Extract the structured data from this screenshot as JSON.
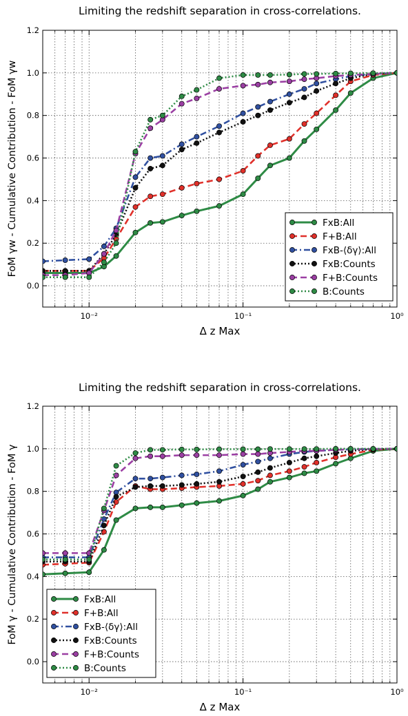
{
  "chart_data": [
    {
      "type": "line",
      "title": "Limiting the redshift separation in cross-correlations.",
      "xlabel": "Δ z Max",
      "ylabel": "FoM γw - Cumulative Contribution - FoM γw",
      "xscale": "log",
      "xlim": [
        0.005,
        1.0
      ],
      "ylim": [
        -0.1,
        1.2
      ],
      "xtick_labels": [
        "10⁻²",
        "10⁻¹",
        "10⁰"
      ],
      "ytick_labels": [
        "0.0",
        "0.2",
        "0.4",
        "0.6",
        "0.8",
        "1.0",
        "1.2"
      ],
      "grid": true,
      "legend_position": "lower-right",
      "series": [
        {
          "name": "FxB:All",
          "color": "#2e8b45",
          "line": "solid",
          "x": [
            0.005,
            0.007,
            0.01,
            0.0125,
            0.015,
            0.02,
            0.025,
            0.03,
            0.04,
            0.05,
            0.07,
            0.1,
            0.125,
            0.15,
            0.2,
            0.25,
            0.3,
            0.4,
            0.5,
            0.7,
            1.0
          ],
          "y": [
            0.06,
            0.06,
            0.06,
            0.09,
            0.14,
            0.25,
            0.295,
            0.3,
            0.33,
            0.35,
            0.375,
            0.43,
            0.505,
            0.565,
            0.6,
            0.68,
            0.735,
            0.825,
            0.905,
            0.975,
            1.0
          ]
        },
        {
          "name": "F+B:All",
          "color": "#e0302a",
          "line": "dashed",
          "x": [
            0.005,
            0.007,
            0.01,
            0.0125,
            0.015,
            0.02,
            0.025,
            0.03,
            0.04,
            0.05,
            0.07,
            0.1,
            0.125,
            0.15,
            0.2,
            0.25,
            0.3,
            0.4,
            0.5,
            0.7,
            1.0
          ],
          "y": [
            0.07,
            0.07,
            0.07,
            0.13,
            0.22,
            0.37,
            0.42,
            0.43,
            0.46,
            0.48,
            0.5,
            0.54,
            0.61,
            0.66,
            0.69,
            0.76,
            0.81,
            0.895,
            0.96,
            0.99,
            1.0
          ]
        },
        {
          "name": "FxB-⟨δγ⟩:All",
          "color": "#3050a0",
          "line": "dashdot",
          "x": [
            0.005,
            0.007,
            0.01,
            0.0125,
            0.015,
            0.02,
            0.025,
            0.03,
            0.04,
            0.05,
            0.07,
            0.1,
            0.125,
            0.15,
            0.2,
            0.25,
            0.3,
            0.4,
            0.5,
            0.7,
            1.0
          ],
          "y": [
            0.115,
            0.12,
            0.125,
            0.185,
            0.27,
            0.51,
            0.6,
            0.61,
            0.665,
            0.7,
            0.75,
            0.81,
            0.84,
            0.865,
            0.9,
            0.925,
            0.95,
            0.97,
            0.985,
            0.995,
            1.0
          ]
        },
        {
          "name": "FxB:Counts",
          "color": "#111111",
          "line": "dotted",
          "x": [
            0.005,
            0.007,
            0.01,
            0.0125,
            0.015,
            0.02,
            0.025,
            0.03,
            0.04,
            0.05,
            0.07,
            0.1,
            0.125,
            0.15,
            0.2,
            0.25,
            0.3,
            0.4,
            0.5,
            0.7,
            1.0
          ],
          "y": [
            0.07,
            0.07,
            0.07,
            0.15,
            0.24,
            0.46,
            0.55,
            0.565,
            0.64,
            0.67,
            0.72,
            0.77,
            0.8,
            0.825,
            0.86,
            0.885,
            0.915,
            0.95,
            0.975,
            0.995,
            1.0
          ]
        },
        {
          "name": "F+B:Counts",
          "color": "#9b3fa3",
          "line": "dashed",
          "x": [
            0.005,
            0.007,
            0.01,
            0.0125,
            0.015,
            0.02,
            0.025,
            0.03,
            0.04,
            0.05,
            0.07,
            0.1,
            0.125,
            0.15,
            0.2,
            0.25,
            0.3,
            0.4,
            0.5,
            0.7,
            1.0
          ],
          "y": [
            0.05,
            0.05,
            0.06,
            0.15,
            0.26,
            0.62,
            0.74,
            0.78,
            0.855,
            0.88,
            0.925,
            0.94,
            0.945,
            0.955,
            0.96,
            0.97,
            0.975,
            0.985,
            0.99,
            0.995,
            1.0
          ]
        },
        {
          "name": "B:Counts",
          "color": "#2e8b45",
          "line": "dotted",
          "x": [
            0.005,
            0.007,
            0.01,
            0.0125,
            0.015,
            0.02,
            0.025,
            0.03,
            0.04,
            0.05,
            0.07,
            0.1,
            0.125,
            0.15,
            0.2,
            0.25,
            0.3,
            0.4,
            0.5,
            0.7,
            1.0
          ],
          "y": [
            0.04,
            0.04,
            0.04,
            0.11,
            0.2,
            0.63,
            0.78,
            0.8,
            0.89,
            0.92,
            0.975,
            0.99,
            0.99,
            0.99,
            0.992,
            0.995,
            0.995,
            0.997,
            0.998,
            0.999,
            1.0
          ]
        }
      ]
    },
    {
      "type": "line",
      "title": "Limiting the redshift separation in cross-correlations.",
      "xlabel": "Δ z Max",
      "ylabel": "FoM γ - Cumulative Contribution - FoM γ",
      "xscale": "log",
      "xlim": [
        0.005,
        1.0
      ],
      "ylim": [
        -0.1,
        1.2
      ],
      "xtick_labels": [
        "10⁻²",
        "10⁻¹",
        "10⁰"
      ],
      "ytick_labels": [
        "0.0",
        "0.2",
        "0.4",
        "0.6",
        "0.8",
        "1.0",
        "1.2"
      ],
      "grid": true,
      "legend_position": "lower-left",
      "series": [
        {
          "name": "FxB:All",
          "color": "#2e8b45",
          "line": "solid",
          "x": [
            0.005,
            0.007,
            0.01,
            0.0125,
            0.015,
            0.02,
            0.025,
            0.03,
            0.04,
            0.05,
            0.07,
            0.1,
            0.125,
            0.15,
            0.2,
            0.25,
            0.3,
            0.4,
            0.5,
            0.7,
            1.0
          ],
          "y": [
            0.41,
            0.415,
            0.42,
            0.525,
            0.665,
            0.72,
            0.725,
            0.725,
            0.735,
            0.745,
            0.755,
            0.78,
            0.81,
            0.845,
            0.865,
            0.885,
            0.895,
            0.93,
            0.955,
            0.99,
            1.0
          ]
        },
        {
          "name": "F+B:All",
          "color": "#e0302a",
          "line": "dashed",
          "x": [
            0.005,
            0.007,
            0.01,
            0.0125,
            0.015,
            0.02,
            0.025,
            0.03,
            0.04,
            0.05,
            0.07,
            0.1,
            0.125,
            0.15,
            0.2,
            0.25,
            0.3,
            0.4,
            0.5,
            0.7,
            1.0
          ],
          "y": [
            0.455,
            0.46,
            0.465,
            0.61,
            0.75,
            0.825,
            0.81,
            0.81,
            0.815,
            0.82,
            0.825,
            0.835,
            0.85,
            0.875,
            0.895,
            0.915,
            0.935,
            0.96,
            0.975,
            0.995,
            1.0
          ]
        },
        {
          "name": "FxB-⟨δγ⟩:All",
          "color": "#3050a0",
          "line": "dashdot",
          "x": [
            0.005,
            0.007,
            0.01,
            0.0125,
            0.015,
            0.02,
            0.025,
            0.03,
            0.04,
            0.05,
            0.07,
            0.1,
            0.125,
            0.15,
            0.2,
            0.25,
            0.3,
            0.4,
            0.5,
            0.7,
            1.0
          ],
          "y": [
            0.49,
            0.49,
            0.49,
            0.67,
            0.795,
            0.86,
            0.86,
            0.865,
            0.875,
            0.88,
            0.895,
            0.925,
            0.94,
            0.955,
            0.975,
            0.985,
            0.99,
            0.995,
            0.997,
            0.999,
            1.0
          ]
        },
        {
          "name": "FxB:Counts",
          "color": "#111111",
          "line": "dotted",
          "x": [
            0.005,
            0.007,
            0.01,
            0.0125,
            0.015,
            0.02,
            0.025,
            0.03,
            0.04,
            0.05,
            0.07,
            0.1,
            0.125,
            0.15,
            0.2,
            0.25,
            0.3,
            0.4,
            0.5,
            0.7,
            1.0
          ],
          "y": [
            0.47,
            0.47,
            0.47,
            0.64,
            0.775,
            0.82,
            0.825,
            0.825,
            0.83,
            0.835,
            0.845,
            0.87,
            0.89,
            0.91,
            0.935,
            0.955,
            0.965,
            0.98,
            0.99,
            0.998,
            1.0
          ]
        },
        {
          "name": "F+B:Counts",
          "color": "#9b3fa3",
          "line": "dashed",
          "x": [
            0.005,
            0.007,
            0.01,
            0.0125,
            0.015,
            0.02,
            0.025,
            0.03,
            0.04,
            0.05,
            0.07,
            0.1,
            0.125,
            0.15,
            0.2,
            0.25,
            0.3,
            0.4,
            0.5,
            0.7,
            1.0
          ],
          "y": [
            0.51,
            0.51,
            0.51,
            0.71,
            0.875,
            0.955,
            0.965,
            0.965,
            0.97,
            0.97,
            0.97,
            0.975,
            0.975,
            0.98,
            0.985,
            0.99,
            0.99,
            0.995,
            0.997,
            0.999,
            1.0
          ]
        },
        {
          "name": "B:Counts",
          "color": "#2e8b45",
          "line": "dotted",
          "x": [
            0.005,
            0.007,
            0.01,
            0.0125,
            0.015,
            0.02,
            0.025,
            0.03,
            0.04,
            0.05,
            0.07,
            0.1,
            0.125,
            0.15,
            0.2,
            0.25,
            0.3,
            0.4,
            0.5,
            0.7,
            1.0
          ],
          "y": [
            0.48,
            0.48,
            0.48,
            0.72,
            0.92,
            0.98,
            0.995,
            0.995,
            0.997,
            0.997,
            0.998,
            0.998,
            0.998,
            0.999,
            0.999,
            0.999,
            0.999,
            1.0,
            1.0,
            1.0,
            1.0
          ]
        }
      ]
    }
  ]
}
